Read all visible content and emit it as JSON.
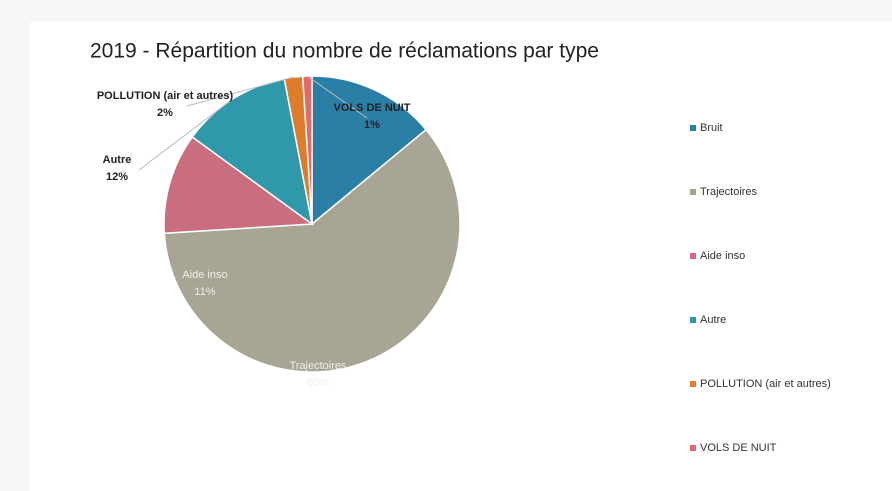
{
  "chart_data": {
    "type": "pie",
    "title": "2019 - Répartition du nombre de réclamations par type",
    "categories": [
      "Bruit",
      "Trajectoires",
      "Aide inso",
      "Autre",
      "POLLUTION (air et autres)",
      "VOLS DE NUIT"
    ],
    "values": [
      14,
      60,
      11,
      12,
      2,
      1
    ],
    "value_labels": [
      "14%",
      "60%",
      "11%",
      "12%",
      "2%",
      "1%"
    ],
    "colors": [
      "#2a7fa6",
      "#a8a594",
      "#c96d7f",
      "#2f98ab",
      "#e07b2a",
      "#e06a6a"
    ],
    "legend": "right"
  }
}
